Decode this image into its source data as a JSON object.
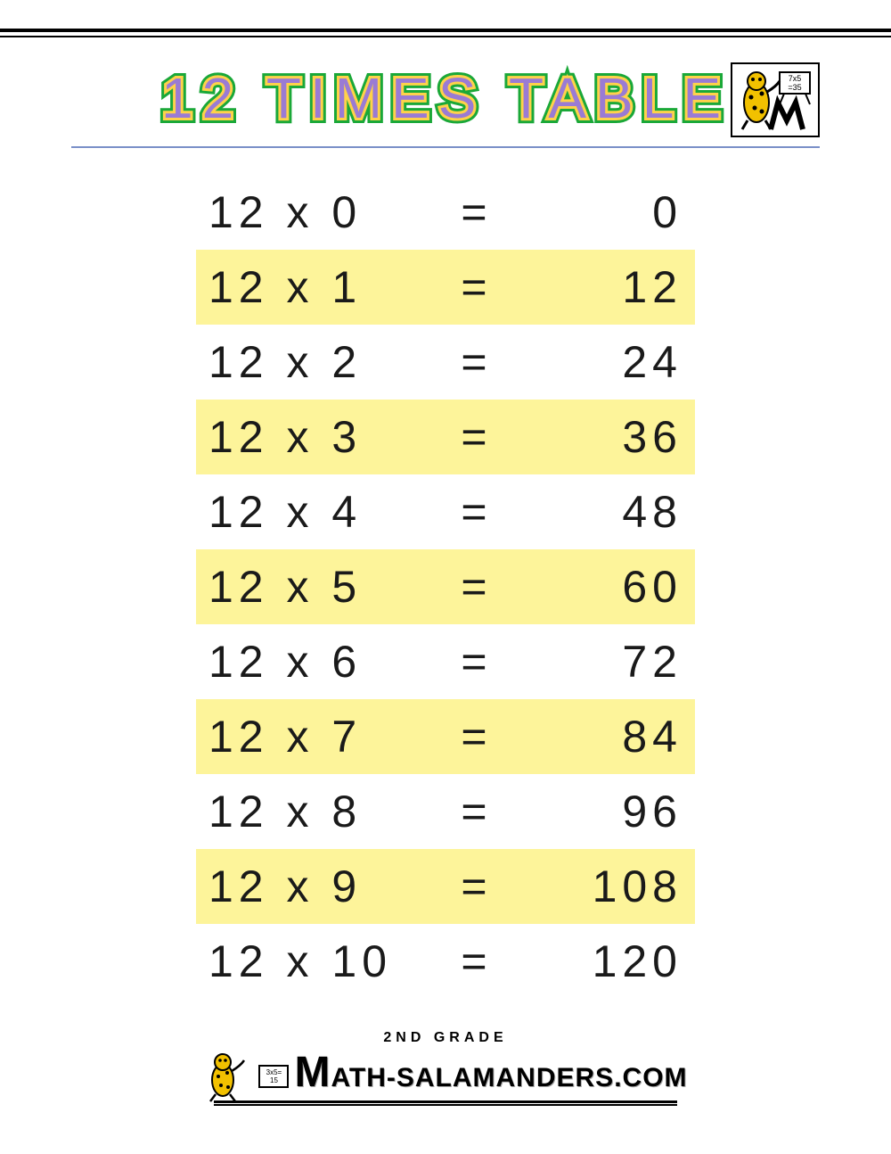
{
  "title": "12 TIMES TABLE",
  "title_colors": {
    "fill": "#9a7bd4",
    "inner_stroke": "#ffd24a",
    "outer_stroke": "#1aa838"
  },
  "title_fontsize": 64,
  "title_letter_spacing": 10,
  "header_underline_color": "#7a90c8",
  "highlight_color": "#fdf49a",
  "text_color": "#1a1a1a",
  "row_fontsize": 50,
  "row_letter_spacing": 6,
  "multiplicand": 12,
  "rows": [
    {
      "multiplier": 0,
      "product": 0,
      "highlight": false
    },
    {
      "multiplier": 1,
      "product": 12,
      "highlight": true
    },
    {
      "multiplier": 2,
      "product": 24,
      "highlight": false
    },
    {
      "multiplier": 3,
      "product": 36,
      "highlight": true
    },
    {
      "multiplier": 4,
      "product": 48,
      "highlight": false
    },
    {
      "multiplier": 5,
      "product": 60,
      "highlight": true
    },
    {
      "multiplier": 6,
      "product": 72,
      "highlight": false
    },
    {
      "multiplier": 7,
      "product": 84,
      "highlight": true
    },
    {
      "multiplier": 8,
      "product": 96,
      "highlight": false
    },
    {
      "multiplier": 9,
      "product": 108,
      "highlight": true
    },
    {
      "multiplier": 10,
      "product": 120,
      "highlight": false
    }
  ],
  "equals_symbol": "=",
  "times_symbol": "x",
  "logo_board_text_top": "7x5",
  "logo_board_text_bottom": "=35",
  "footer": {
    "line1": "2ND GRADE",
    "site_name": "ATH-SALAMANDERS.COM",
    "big_letter": "M",
    "mini_board_top": "3x5=",
    "mini_board_bottom": "15"
  },
  "salamander_colors": {
    "body": "#f2c100",
    "spots": "#000000",
    "outline": "#000000"
  }
}
